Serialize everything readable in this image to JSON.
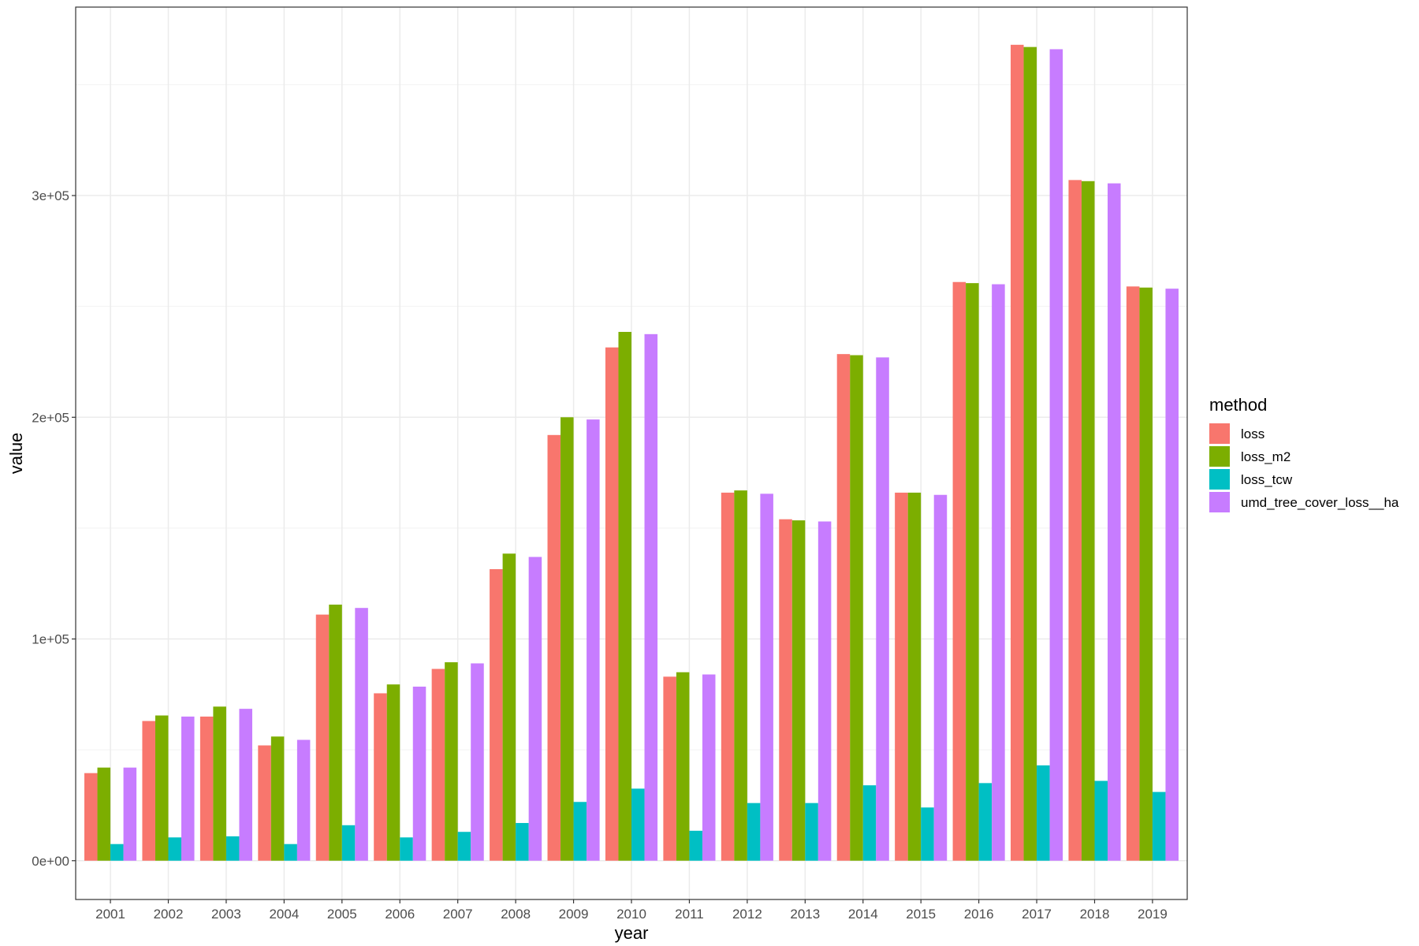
{
  "chart_data": {
    "type": "bar",
    "xlabel": "year",
    "ylabel": "value",
    "legend_title": "method",
    "legend_position": "right",
    "grid": true,
    "ylim": [
      -17500,
      385000
    ],
    "yticks": [
      0,
      100000,
      200000,
      300000
    ],
    "ytick_labels": [
      "0e+00",
      "1e+05",
      "2e+05",
      "3e+05"
    ],
    "categories": [
      "2001",
      "2002",
      "2003",
      "2004",
      "2005",
      "2006",
      "2007",
      "2008",
      "2009",
      "2010",
      "2011",
      "2012",
      "2013",
      "2014",
      "2015",
      "2016",
      "2017",
      "2018",
      "2019"
    ],
    "series": [
      {
        "name": "loss",
        "color": "#F8766D",
        "values": [
          39500,
          63000,
          65000,
          52000,
          111000,
          75500,
          86500,
          131500,
          192000,
          231500,
          83000,
          166000,
          154000,
          228500,
          166000,
          261000,
          368000,
          307000,
          259000
        ]
      },
      {
        "name": "loss_m2",
        "color": "#7CAE00",
        "values": [
          42000,
          65500,
          69500,
          56000,
          115500,
          79500,
          89500,
          138500,
          200000,
          238500,
          85000,
          167000,
          153500,
          228000,
          166000,
          260500,
          367000,
          306500,
          258500
        ]
      },
      {
        "name": "loss_tcw",
        "color": "#00BFC4",
        "values": [
          7500,
          10500,
          11000,
          7500,
          16000,
          10500,
          13000,
          17000,
          26500,
          32500,
          13500,
          26000,
          26000,
          34000,
          24000,
          35000,
          43000,
          36000,
          31000
        ]
      },
      {
        "name": "umd_tree_cover_loss__ha",
        "color": "#C77CFF",
        "values": [
          42000,
          65000,
          68500,
          54500,
          114000,
          78500,
          89000,
          137000,
          199000,
          237500,
          84000,
          165500,
          153000,
          227000,
          165000,
          260000,
          366000,
          305500,
          258000
        ]
      }
    ]
  }
}
